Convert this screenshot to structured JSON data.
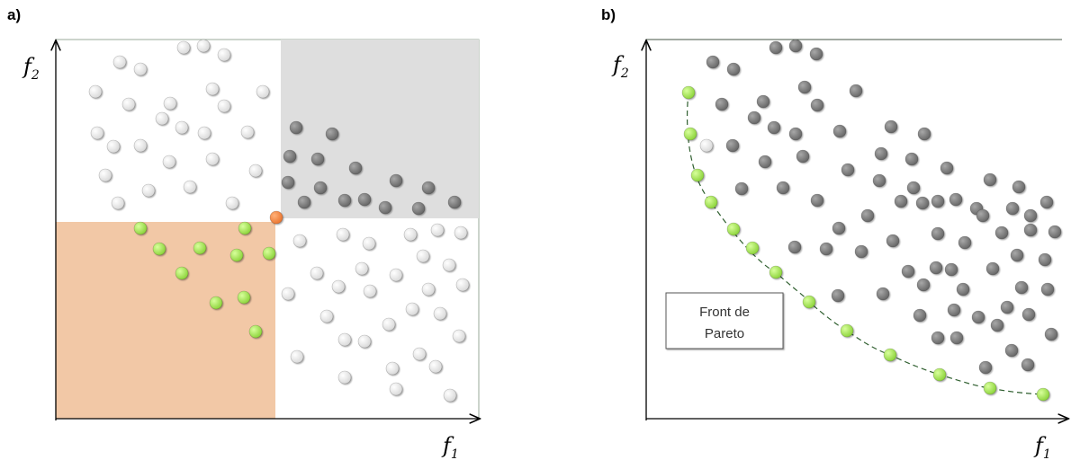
{
  "panels": [
    {
      "id": "a",
      "label": "a)",
      "x_axis_label": "f",
      "x_axis_sub": "1",
      "y_axis_label": "f",
      "y_axis_sub": "2"
    },
    {
      "id": "b",
      "label": "b)",
      "x_axis_label": "f",
      "x_axis_sub": "1",
      "y_axis_label": "f",
      "y_axis_sub": "2"
    }
  ],
  "legend": {
    "line1": "Front de",
    "line2": "Pareto"
  },
  "colors": {
    "light_point": "#e6e6e6",
    "dark_point": "#7a7a7a",
    "green_point": "#9be24a",
    "orange_point": "#f07f3a",
    "dominated_region": "#dedede",
    "dominating_region": "#f2c8a6",
    "front_line": "#2f5f2f"
  }
}
